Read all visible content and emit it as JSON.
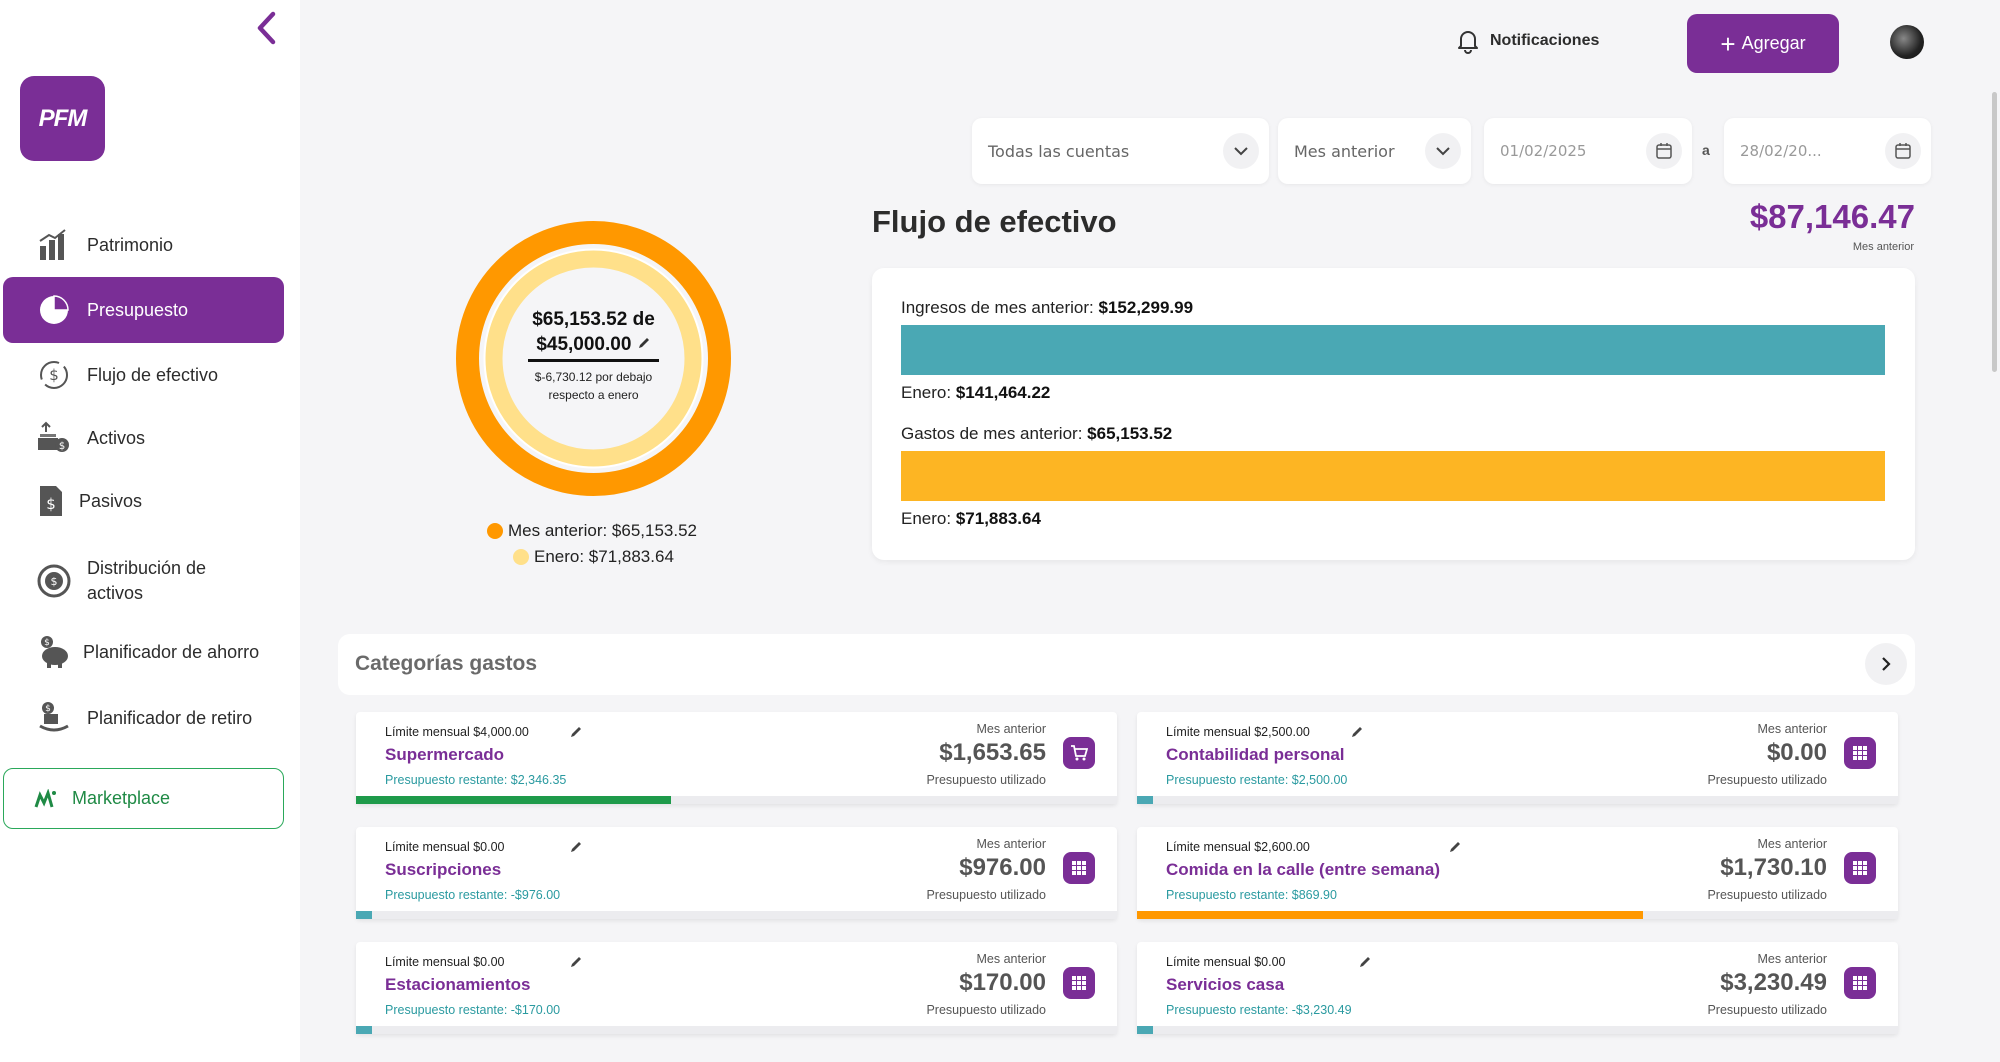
{
  "sidebar": {
    "logo": "PFM",
    "items": [
      {
        "label": "Patrimonio",
        "icon": "bar-chart-icon"
      },
      {
        "label": "Presupuesto",
        "icon": "pie-chart-icon"
      },
      {
        "label": "Flujo de efectivo",
        "icon": "cash-flow-icon"
      },
      {
        "label": "Activos",
        "icon": "assets-icon"
      },
      {
        "label": "Pasivos",
        "icon": "liabilities-icon"
      },
      {
        "label": "Distribución de activos",
        "icon": "distribution-icon"
      },
      {
        "label": "Planificador de ahorro",
        "icon": "piggy-bank-icon"
      },
      {
        "label": "Planificador de retiro",
        "icon": "retirement-icon"
      }
    ],
    "active_index": 1,
    "marketplace": "Marketplace"
  },
  "header": {
    "notifications": "Notificaciones",
    "add_button": "Agregar"
  },
  "filters": {
    "accounts": "Todas las cuentas",
    "period": "Mes anterior",
    "date_from": "01/02/2025",
    "separator": "a",
    "date_to": "28/02/20..."
  },
  "budget": {
    "spent": "$65,153.52 de",
    "limit": "$45,000.00",
    "delta_line1": "$-6,730.12 por debajo",
    "delta_line2": "respecto a enero",
    "legend": [
      {
        "label": "Mes anterior: $65,153.52",
        "color": "#ff9800"
      },
      {
        "label": "Enero: $71,883.64",
        "color": "#ffe08a"
      }
    ]
  },
  "cashflow": {
    "title": "Flujo de efectivo",
    "amount": "$87,146.47",
    "amount_sub": "Mes anterior",
    "income_label": "Ingresos de mes anterior:",
    "income_value": "$152,299.99",
    "income_prev_label": "Enero:",
    "income_prev_value": "$141,464.22",
    "expense_label": "Gastos de mes anterior:",
    "expense_value": "$65,153.52",
    "expense_prev_label": "Enero:",
    "expense_prev_value": "$71,883.64",
    "income_color": "#4aa8b4",
    "expense_color": "#fdb523"
  },
  "categories": {
    "title": "Categorías gastos",
    "mes_label": "Mes anterior",
    "used_label": "Presupuesto utilizado",
    "items": [
      {
        "limit": "Límite mensual $4,000.00",
        "name": "Supermercado",
        "remaining": "Presupuesto restante: $2,346.35",
        "value": "$1,653.65",
        "icon": "shopping-cart-icon",
        "progress": 0.4134,
        "bar_color": "#1e9a4a"
      },
      {
        "limit": "Límite mensual $2,500.00",
        "name": "Contabilidad personal",
        "remaining": "Presupuesto restante: $2,500.00",
        "value": "$0.00",
        "icon": "grid-icon",
        "progress": 0.0,
        "bar_color": "#4aa8b4"
      },
      {
        "limit": "Límite mensual $0.00",
        "name": "Suscripciones",
        "remaining": "Presupuesto restante: -$976.00",
        "value": "$976.00",
        "icon": "grid-icon",
        "progress": 0.0,
        "bar_color": "#4aa8b4"
      },
      {
        "limit": "Límite mensual $2,600.00",
        "name": "Comida en la calle (entre semana)",
        "remaining": "Presupuesto restante: $869.90",
        "value": "$1,730.10",
        "icon": "grid-icon",
        "progress": 0.6654,
        "bar_color": "#ff9800"
      },
      {
        "limit": "Límite mensual $0.00",
        "name": "Estacionamientos",
        "remaining": "Presupuesto restante: -$170.00",
        "value": "$170.00",
        "icon": "grid-icon",
        "progress": 0.0,
        "bar_color": "#4aa8b4"
      },
      {
        "limit": "Límite mensual $0.00",
        "name": "Servicios casa",
        "remaining": "Presupuesto restante: -$3,230.49",
        "value": "$3,230.49",
        "icon": "grid-icon",
        "progress": 0.0,
        "bar_color": "#4aa8b4"
      }
    ]
  }
}
